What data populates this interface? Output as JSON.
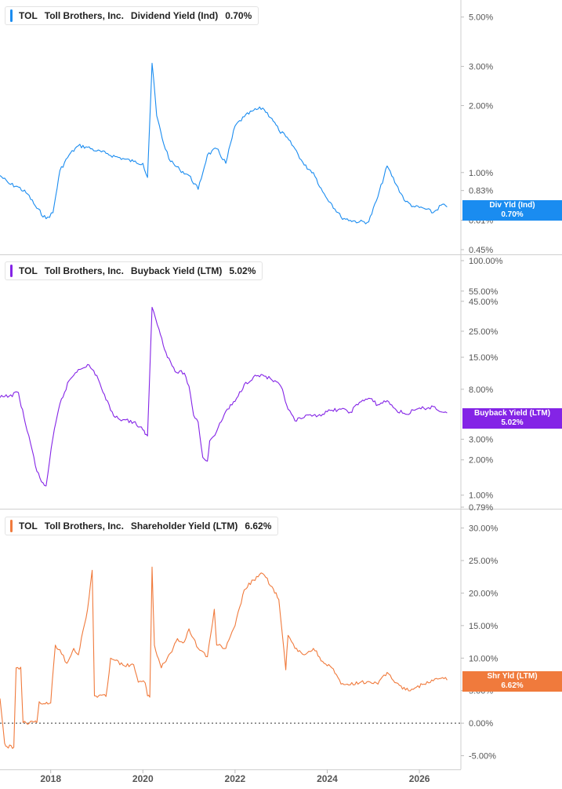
{
  "x_tick_labels": [
    "2018",
    "2020",
    "2022",
    "2024",
    "2026"
  ],
  "panels": [
    {
      "ticker": "TOL",
      "company": "Toll Brothers, Inc.",
      "metric": "Dividend Yield (Ind)",
      "value": "0.70%",
      "color": "#1a8cf0",
      "tag_label": "Div Yld (Ind)",
      "tag_value": "0.70%",
      "y_scale": "log",
      "y_tick_labels": [
        "5.00%",
        "3.00%",
        "2.00%",
        "1.00%",
        "0.83%",
        "0.61%",
        "0.45%"
      ]
    },
    {
      "ticker": "TOL",
      "company": "Toll Brothers, Inc.",
      "metric": "Buyback Yield (LTM)",
      "value": "5.02%",
      "color": "#8424e6",
      "tag_label": "Buyback Yield (LTM)",
      "tag_value": "5.02%",
      "y_scale": "log",
      "y_tick_labels": [
        "100.00%",
        "55.00%",
        "45.00%",
        "25.00%",
        "15.00%",
        "8.00%",
        "3.00%",
        "2.00%",
        "1.00%",
        "0.79%"
      ]
    },
    {
      "ticker": "TOL",
      "company": "Toll Brothers, Inc.",
      "metric": "Shareholder Yield (LTM)",
      "value": "6.62%",
      "color": "#f07a3c",
      "tag_label": "Shr Yld (LTM)",
      "tag_value": "6.62%",
      "y_scale": "linear",
      "y_tick_labels": [
        "30.00%",
        "25.00%",
        "20.00%",
        "15.00%",
        "10.00%",
        "5.00%",
        "0.00%",
        "-5.00%"
      ]
    }
  ],
  "chart_data": [
    {
      "type": "line",
      "name": "Dividend Yield (Ind)",
      "y_scale": "log",
      "ylim": [
        0.45,
        5.5
      ],
      "x": [
        2016.9,
        2017.1,
        2017.3,
        2017.5,
        2017.7,
        2017.9,
        2018.05,
        2018.2,
        2018.4,
        2018.6,
        2018.8,
        2019.0,
        2019.2,
        2019.4,
        2019.6,
        2019.8,
        2020.0,
        2020.1,
        2020.2,
        2020.3,
        2020.45,
        2020.6,
        2020.8,
        2021.0,
        2021.2,
        2021.4,
        2021.6,
        2021.8,
        2022.0,
        2022.2,
        2022.4,
        2022.6,
        2022.8,
        2022.95,
        2023.1,
        2023.3,
        2023.5,
        2023.7,
        2023.9,
        2024.1,
        2024.3,
        2024.5,
        2024.7,
        2024.9,
        2025.1,
        2025.3,
        2025.5,
        2025.7,
        2025.9,
        2026.1,
        2026.3,
        2026.5,
        2026.6
      ],
      "y": [
        0.97,
        0.89,
        0.86,
        0.8,
        0.69,
        0.62,
        0.66,
        1.02,
        1.2,
        1.32,
        1.3,
        1.25,
        1.22,
        1.18,
        1.15,
        1.12,
        1.1,
        0.95,
        3.1,
        1.8,
        1.35,
        1.12,
        1.03,
        0.97,
        0.84,
        1.2,
        1.28,
        1.1,
        1.62,
        1.78,
        1.9,
        1.95,
        1.75,
        1.55,
        1.45,
        1.28,
        1.08,
        1.0,
        0.82,
        0.72,
        0.63,
        0.61,
        0.6,
        0.6,
        0.78,
        1.07,
        0.88,
        0.74,
        0.7,
        0.69,
        0.66,
        0.72,
        0.7
      ]
    },
    {
      "type": "line",
      "name": "Buyback Yield (LTM)",
      "y_scale": "log",
      "ylim": [
        0.79,
        100
      ],
      "x": [
        2016.9,
        2017.1,
        2017.3,
        2017.45,
        2017.6,
        2017.7,
        2017.8,
        2017.9,
        2018.05,
        2018.2,
        2018.4,
        2018.6,
        2018.8,
        2019.0,
        2019.2,
        2019.4,
        2019.6,
        2019.8,
        2020.0,
        2020.05,
        2020.1,
        2020.2,
        2020.35,
        2020.5,
        2020.7,
        2020.9,
        2021.0,
        2021.1,
        2021.2,
        2021.3,
        2021.4,
        2021.45,
        2021.6,
        2021.8,
        2022.0,
        2022.2,
        2022.4,
        2022.6,
        2022.8,
        2023.0,
        2023.15,
        2023.3,
        2023.5,
        2023.7,
        2023.9,
        2024.1,
        2024.3,
        2024.5,
        2024.7,
        2024.9,
        2025.1,
        2025.3,
        2025.5,
        2025.7,
        2025.9,
        2026.1,
        2026.3,
        2026.5,
        2026.6
      ],
      "y": [
        6.8,
        7.0,
        7.5,
        4.1,
        2.4,
        1.6,
        1.3,
        1.2,
        3.1,
        6.0,
        9.5,
        11.8,
        13.0,
        10.5,
        6.5,
        4.6,
        4.4,
        4.2,
        3.6,
        3.3,
        3.2,
        40,
        26,
        16.5,
        11.3,
        11.0,
        8.5,
        4.8,
        4.2,
        2.1,
        1.95,
        2.9,
        3.5,
        5.2,
        6.3,
        8.8,
        10.2,
        10.6,
        9.6,
        8.4,
        5.4,
        4.3,
        4.6,
        4.8,
        4.9,
        5.3,
        5.4,
        5.1,
        6.2,
        6.7,
        5.9,
        6.4,
        5.3,
        4.9,
        5.3,
        5.5,
        5.7,
        5.1,
        5.02
      ]
    },
    {
      "type": "line",
      "name": "Shareholder Yield (LTM)",
      "y_scale": "linear",
      "ylim": [
        -6.5,
        32
      ],
      "x": [
        2016.9,
        2017.0,
        2017.05,
        2017.2,
        2017.25,
        2017.35,
        2017.4,
        2017.7,
        2017.75,
        2017.85,
        2018.0,
        2018.1,
        2018.2,
        2018.35,
        2018.5,
        2018.6,
        2018.8,
        2018.9,
        2018.95,
        2019.2,
        2019.3,
        2019.6,
        2019.8,
        2019.9,
        2020.05,
        2020.1,
        2020.15,
        2020.2,
        2020.25,
        2020.4,
        2020.6,
        2020.75,
        2020.9,
        2021.0,
        2021.2,
        2021.4,
        2021.55,
        2021.6,
        2021.8,
        2022.0,
        2022.2,
        2022.4,
        2022.6,
        2022.8,
        2022.95,
        2023.1,
        2023.15,
        2023.3,
        2023.5,
        2023.7,
        2023.9,
        2024.1,
        2024.3,
        2024.5,
        2024.7,
        2024.9,
        2025.1,
        2025.3,
        2025.5,
        2025.7,
        2025.9,
        2026.1,
        2026.3,
        2026.5,
        2026.6
      ],
      "y": [
        3.8,
        -3.1,
        -3.6,
        -3.7,
        8.5,
        8.6,
        0.1,
        0.1,
        3.3,
        3.0,
        3.1,
        12.0,
        11.3,
        9.2,
        11.5,
        10.5,
        17.5,
        23.5,
        4.2,
        4.1,
        10.0,
        8.8,
        9.0,
        6.3,
        6.2,
        4.2,
        4.0,
        24.0,
        12.0,
        8.5,
        10.8,
        13.0,
        12.5,
        14.5,
        11.5,
        10.2,
        17.5,
        12.0,
        11.5,
        15.0,
        20.5,
        22.0,
        23.0,
        21.0,
        19.0,
        8.2,
        13.5,
        11.5,
        10.5,
        11.5,
        9.5,
        8.5,
        6.0,
        5.9,
        6.2,
        6.4,
        6.0,
        7.8,
        6.2,
        5.1,
        5.4,
        6.0,
        6.5,
        7.0,
        6.62
      ]
    }
  ]
}
